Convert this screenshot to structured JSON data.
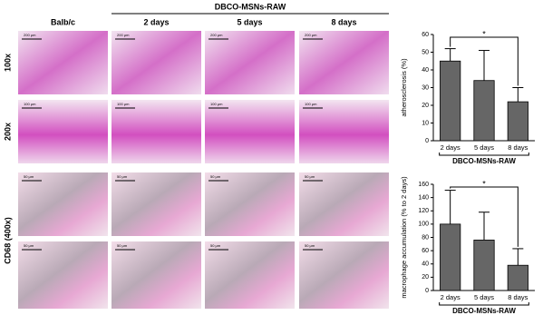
{
  "figure": {
    "column_group": "DBCO-MSNs-RAW",
    "columns": [
      "Balb/c",
      "2 days",
      "5 days",
      "8 days"
    ],
    "rows": [
      "100x",
      "200x",
      "CD68 (400x)"
    ],
    "scale_labels": [
      [
        "200 μm",
        "200 μm",
        "200 μm",
        "200 μm"
      ],
      [
        "100 μm",
        "100 μm",
        "100 μm",
        "100 μm"
      ],
      [
        "50 μm",
        "50 μm",
        "50 μm",
        "50 μm"
      ],
      [
        "50 μm",
        "50 μm",
        "50 μm",
        "50 μm"
      ]
    ]
  },
  "chart_data": [
    {
      "type": "bar",
      "y_label": "atherosclerosis (%)",
      "categories": [
        "2 days",
        "5 days",
        "8 days"
      ],
      "group_label": "DBCO-MSNs-RAW",
      "values": [
        45,
        34,
        22
      ],
      "errors": [
        7,
        17,
        8
      ],
      "color": "#666666",
      "ylim": [
        0,
        60
      ],
      "yticks": [
        0,
        10,
        20,
        30,
        40,
        50,
        60
      ],
      "annotation": "*"
    },
    {
      "type": "bar",
      "y_label": "macrophage accumulation (% to 2 days)",
      "categories": [
        "2 days",
        "5 days",
        "8 days"
      ],
      "group_label": "DBCO-MSNs-RAW",
      "values": [
        100,
        76,
        38
      ],
      "errors": [
        51,
        42,
        25
      ],
      "color": "#666666",
      "ylim": [
        0,
        160
      ],
      "yticks": [
        0,
        20,
        40,
        60,
        80,
        100,
        120,
        140,
        160
      ],
      "annotation": "*"
    }
  ]
}
